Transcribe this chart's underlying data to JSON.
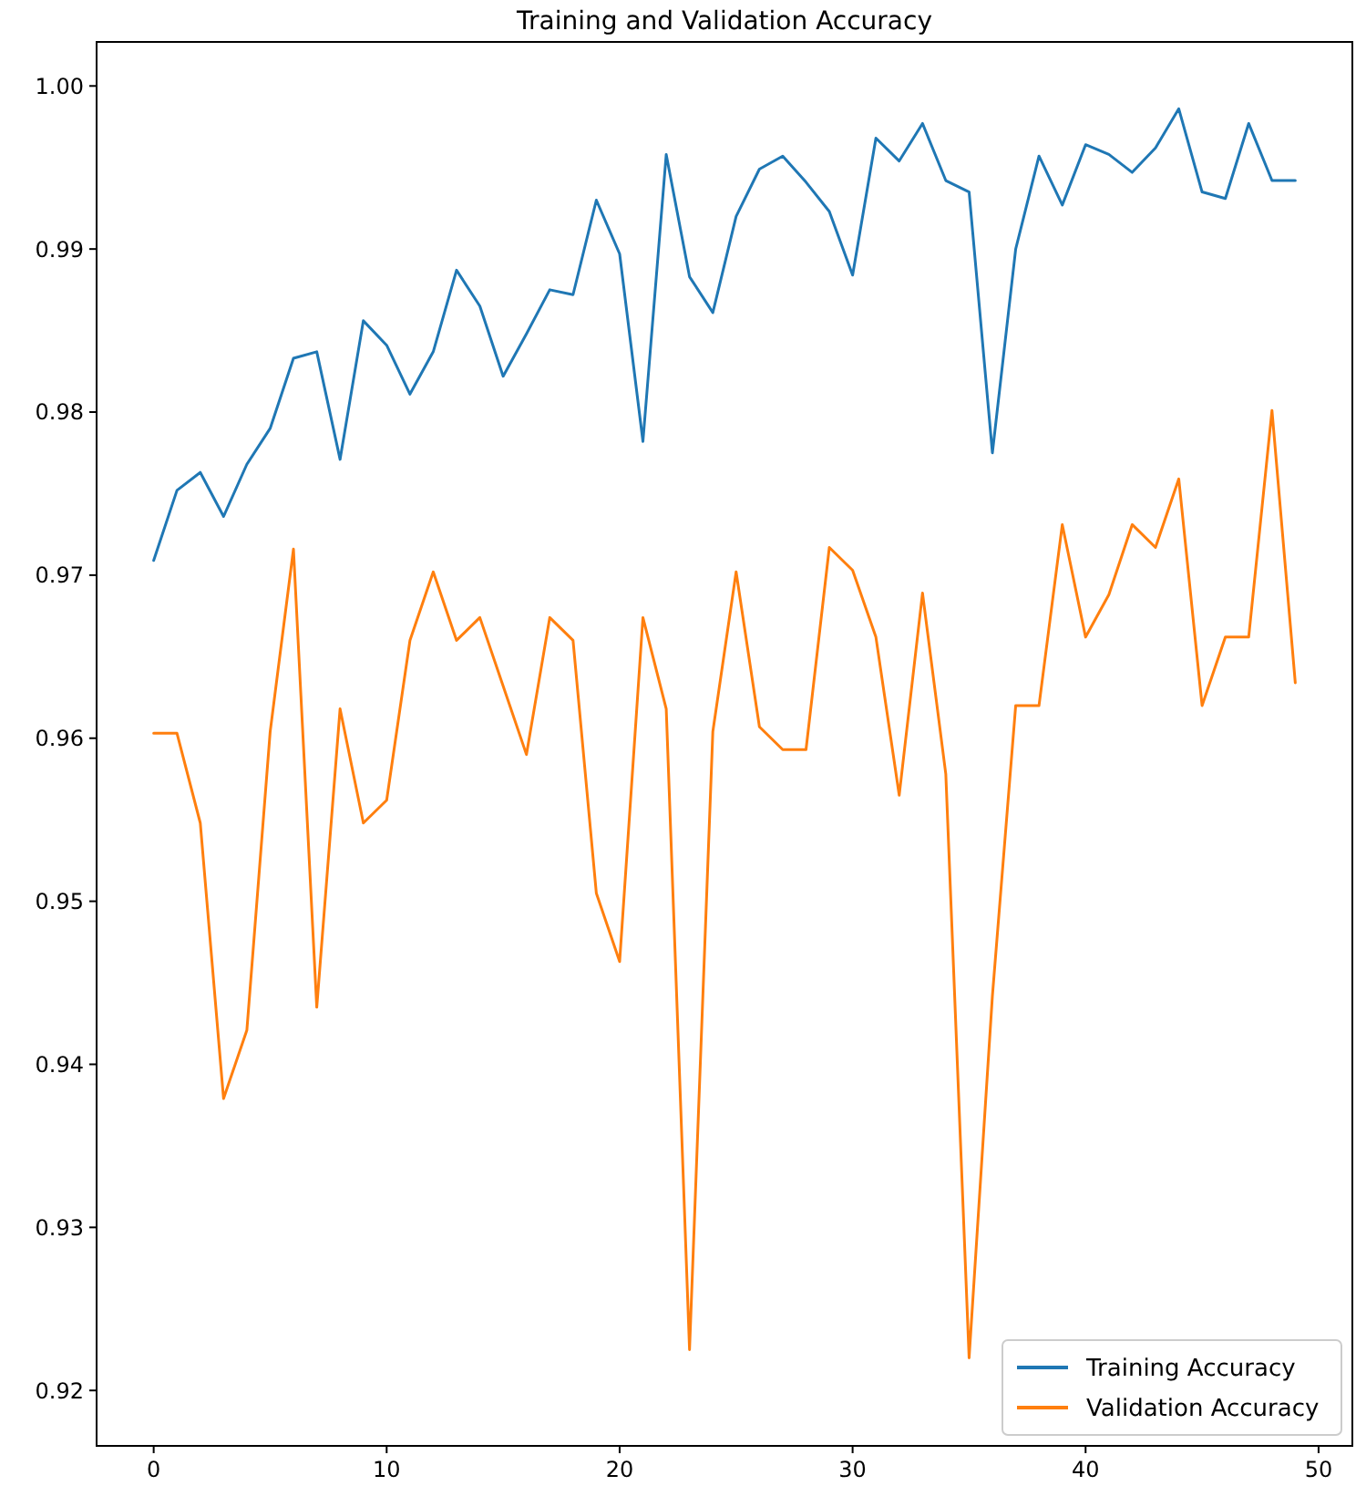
{
  "chart_data": {
    "type": "line",
    "title": "Training and Validation Accuracy",
    "x": [
      0,
      1,
      2,
      3,
      4,
      5,
      6,
      7,
      8,
      9,
      10,
      11,
      12,
      13,
      14,
      15,
      16,
      17,
      18,
      19,
      20,
      21,
      22,
      23,
      24,
      25,
      26,
      27,
      28,
      29,
      30,
      31,
      32,
      33,
      34,
      35,
      36,
      37,
      38,
      39,
      40,
      41,
      42,
      43,
      44,
      45,
      46,
      47,
      48,
      49
    ],
    "series": [
      {
        "name": "Training Accuracy",
        "color": "#1f77b4",
        "values": [
          0.9709,
          0.9752,
          0.9763,
          0.9736,
          0.9768,
          0.979,
          0.9833,
          0.9837,
          0.9771,
          0.9856,
          0.9841,
          0.9811,
          0.9837,
          0.9887,
          0.9865,
          0.9822,
          0.9848,
          0.9875,
          0.9872,
          0.993,
          0.9897,
          0.9782,
          0.9958,
          0.9883,
          0.9861,
          0.992,
          0.9949,
          0.9957,
          0.9941,
          0.9923,
          0.9884,
          0.9968,
          0.9954,
          0.9977,
          0.9942,
          0.9935,
          0.9775,
          0.99,
          0.9957,
          0.9927,
          0.9964,
          0.9958,
          0.9947,
          0.9962,
          0.9986,
          0.9935,
          0.9931,
          0.9977,
          0.9942,
          0.9942
        ]
      },
      {
        "name": "Validation Accuracy",
        "color": "#ff7f0e",
        "values": [
          0.9603,
          0.9603,
          0.9548,
          0.9379,
          0.9421,
          0.9604,
          0.9716,
          0.9435,
          0.9618,
          0.9548,
          0.9562,
          0.966,
          0.9702,
          0.966,
          0.9674,
          0.9632,
          0.959,
          0.9674,
          0.966,
          0.9505,
          0.9463,
          0.9674,
          0.9618,
          0.9225,
          0.9604,
          0.9702,
          0.9607,
          0.9593,
          0.9593,
          0.9717,
          0.9703,
          0.9662,
          0.9565,
          0.9689,
          0.9578,
          0.922,
          0.9442,
          0.962,
          0.962,
          0.9731,
          0.9662,
          0.9688,
          0.9731,
          0.9717,
          0.9759,
          0.962,
          0.9662,
          0.9662,
          0.9801,
          0.9634
        ]
      }
    ],
    "xlim": [
      -2.45,
      51.45
    ],
    "ylim": [
      0.9166,
      1.0027
    ],
    "xticks": [
      0,
      10,
      20,
      30,
      40,
      50
    ],
    "yticks": [
      {
        "value": 0.92,
        "label": "0.92"
      },
      {
        "value": 0.93,
        "label": "0.93"
      },
      {
        "value": 0.94,
        "label": "0.94"
      },
      {
        "value": 0.95,
        "label": "0.95"
      },
      {
        "value": 0.96,
        "label": "0.96"
      },
      {
        "value": 0.97,
        "label": "0.97"
      },
      {
        "value": 0.98,
        "label": "0.98"
      },
      {
        "value": 0.99,
        "label": "0.99"
      },
      {
        "value": 1.0,
        "label": "1.00"
      }
    ],
    "legend": "bottom right",
    "grid": false,
    "marker": "none",
    "line_style": "solid"
  }
}
